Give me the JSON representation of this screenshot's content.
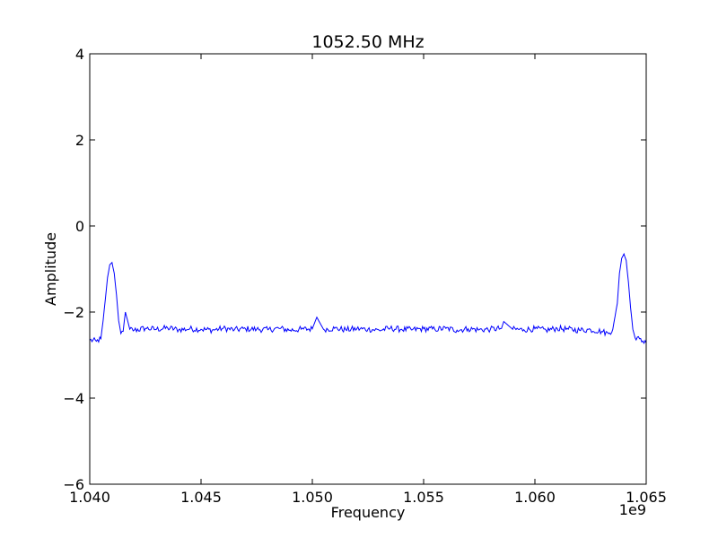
{
  "chart_data": {
    "type": "line",
    "title": "1052.50 MHz",
    "xlabel": "Frequency",
    "ylabel": "Amplitude",
    "x_offset_label": "1e9",
    "xlim": [
      1.04,
      1.065
    ],
    "ylim": [
      -6,
      4
    ],
    "x_ticks": [
      1.04,
      1.045,
      1.05,
      1.055,
      1.06,
      1.065
    ],
    "x_tick_labels": [
      "1.040",
      "1.045",
      "1.050",
      "1.055",
      "1.060",
      "1.065"
    ],
    "y_ticks": [
      4,
      2,
      0,
      -2,
      -4,
      -6
    ],
    "y_tick_labels": [
      "4",
      "2",
      "0",
      "−2",
      "−4",
      "−6"
    ],
    "grid": false,
    "line_color": "#0000ff",
    "series": [
      {
        "values_x": [
          1.04,
          1.0403,
          1.0405,
          1.0406,
          1.0407,
          1.0408,
          1.0409,
          1.041,
          1.0411,
          1.0412,
          1.0413,
          1.0414,
          1.0415,
          1.0416,
          1.0418,
          1.042,
          1.0425,
          1.043,
          1.0435,
          1.044,
          1.0445,
          1.045,
          1.0455,
          1.046,
          1.0465,
          1.047,
          1.0475,
          1.048,
          1.0485,
          1.049,
          1.0495,
          1.05,
          1.0502,
          1.0505,
          1.051,
          1.0515,
          1.052,
          1.0525,
          1.053,
          1.0535,
          1.054,
          1.0545,
          1.055,
          1.0555,
          1.056,
          1.0565,
          1.057,
          1.0575,
          1.058,
          1.0585,
          1.0586,
          1.059,
          1.0595,
          1.06,
          1.0605,
          1.061,
          1.0615,
          1.062,
          1.0625,
          1.063,
          1.0633,
          1.0635,
          1.0637,
          1.0638,
          1.0639,
          1.064,
          1.0641,
          1.0642,
          1.0643,
          1.0644,
          1.0645,
          1.0647,
          1.065
        ],
        "values_y": [
          -2.65,
          -2.68,
          -2.62,
          -2.2,
          -1.7,
          -1.2,
          -0.9,
          -0.85,
          -1.1,
          -1.6,
          -2.2,
          -2.5,
          -2.45,
          -2.0,
          -2.4,
          -2.42,
          -2.38,
          -2.4,
          -2.37,
          -2.41,
          -2.39,
          -2.4,
          -2.42,
          -2.38,
          -2.41,
          -2.39,
          -2.4,
          -2.41,
          -2.38,
          -2.42,
          -2.4,
          -2.39,
          -2.12,
          -2.4,
          -2.38,
          -2.41,
          -2.39,
          -2.4,
          -2.42,
          -2.38,
          -2.4,
          -2.41,
          -2.39,
          -2.4,
          -2.38,
          -2.42,
          -2.39,
          -2.41,
          -2.4,
          -2.38,
          -2.22,
          -2.4,
          -2.41,
          -2.39,
          -2.42,
          -2.38,
          -2.4,
          -2.42,
          -2.41,
          -2.45,
          -2.5,
          -2.4,
          -1.8,
          -1.1,
          -0.75,
          -0.65,
          -0.8,
          -1.3,
          -1.9,
          -2.4,
          -2.6,
          -2.62,
          -2.72
        ]
      }
    ]
  }
}
